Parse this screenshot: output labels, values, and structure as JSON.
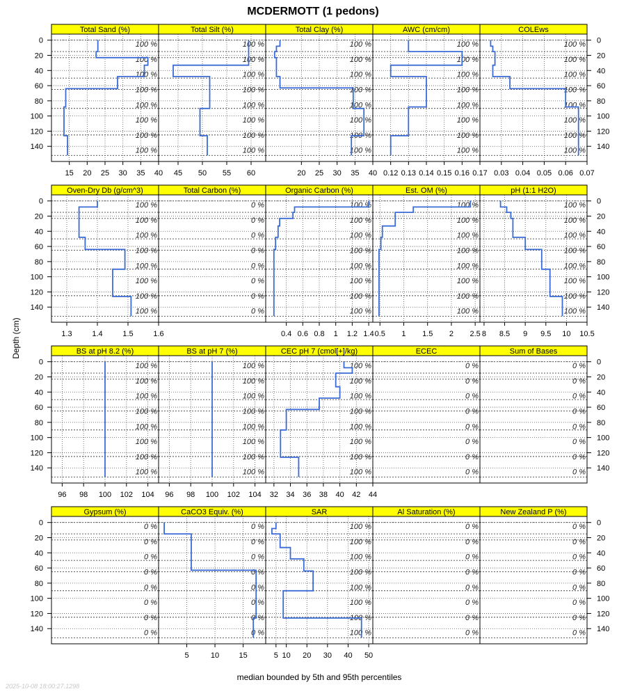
{
  "chart_data": {
    "type": "line",
    "title": "MCDERMOTT (1 pedons)",
    "ylabel": "Depth (cm)",
    "xlabel": "median bounded by 5th and 95th percentiles",
    "timestamp": "2025-10-08 18:00:27.1298",
    "ylim": [
      -8,
      160
    ],
    "y_reversed": true,
    "depth_ticks": [
      0,
      20,
      40,
      60,
      80,
      100,
      120,
      140
    ],
    "horizon_boundaries": [
      0,
      15,
      23,
      50,
      65,
      90,
      125,
      152
    ],
    "grid": true,
    "series_color": "#3a6bd6",
    "strip_color": "#ffff00",
    "pct_depths": [
      5,
      25,
      45,
      65,
      85,
      105,
      125,
      145
    ],
    "panels": [
      {
        "name": "Total Sand (%)",
        "xlim": [
          10,
          40
        ],
        "xticks": [
          15,
          20,
          25,
          30,
          35,
          40
        ],
        "pct_label": "100 %",
        "profile": [
          [
            0,
            15,
            23
          ],
          [
            15,
            23,
            22.5
          ],
          [
            23,
            33,
            37
          ],
          [
            33,
            48,
            36
          ],
          [
            48,
            64,
            28.5
          ],
          [
            64,
            88,
            14
          ],
          [
            88,
            126,
            13.5
          ],
          [
            126,
            152,
            14.5
          ]
        ]
      },
      {
        "name": "Total Silt (%)",
        "xlim": [
          41,
          63
        ],
        "xticks": [
          45,
          50,
          55,
          60
        ],
        "pct_label": "100 %",
        "profile": [
          [
            0,
            33,
            59.5
          ],
          [
            33,
            48,
            44
          ],
          [
            48,
            66,
            51.5
          ],
          [
            66,
            90,
            51.5
          ],
          [
            90,
            126,
            49.5
          ],
          [
            126,
            152,
            51
          ]
        ]
      },
      {
        "name": "Total Clay (%)",
        "xlim": [
          10,
          40
        ],
        "xticks": [
          20,
          25,
          30,
          35,
          40
        ],
        "pct_label": "100 %",
        "profile": [
          [
            0,
            8,
            14
          ],
          [
            8,
            15,
            13
          ],
          [
            15,
            23,
            12.5
          ],
          [
            23,
            48,
            13
          ],
          [
            48,
            63,
            14
          ],
          [
            63,
            90,
            34.5
          ],
          [
            90,
            126,
            37.5
          ],
          [
            126,
            152,
            34
          ]
        ]
      },
      {
        "name": "AWC (cm/cm)",
        "xlim": [
          0.11,
          0.17
        ],
        "xticks": [
          0.12,
          0.13,
          0.14,
          0.15,
          0.16,
          0.17
        ],
        "pct_label": "100 %",
        "profile": [
          [
            0,
            15,
            0.13
          ],
          [
            15,
            33,
            0.16
          ],
          [
            33,
            48,
            0.12
          ],
          [
            48,
            88,
            0.14
          ],
          [
            88,
            126,
            0.13
          ],
          [
            126,
            152,
            0.12
          ]
        ]
      },
      {
        "name": "COLEws",
        "xlim": [
          0.02,
          0.07
        ],
        "xticks": [
          0.03,
          0.04,
          0.05,
          0.06,
          0.07
        ],
        "pct_label": "100 %",
        "profile": [
          [
            0,
            8,
            0.025
          ],
          [
            8,
            15,
            0.026
          ],
          [
            15,
            33,
            0.027
          ],
          [
            33,
            48,
            0.026
          ],
          [
            48,
            64,
            0.034
          ],
          [
            64,
            88,
            0.06
          ],
          [
            88,
            152,
            0.066
          ]
        ]
      },
      {
        "name": "Oven-Dry Db (g/cm^3)",
        "xlim": [
          1.25,
          1.6
        ],
        "xticks": [
          1.3,
          1.4,
          1.5,
          1.6
        ],
        "pct_label": "100 %",
        "profile": [
          [
            0,
            8,
            1.4
          ],
          [
            8,
            48,
            1.34
          ],
          [
            48,
            64,
            1.36
          ],
          [
            64,
            90,
            1.49
          ],
          [
            90,
            126,
            1.45
          ],
          [
            126,
            152,
            1.51
          ]
        ]
      },
      {
        "name": "Total Carbon (%)",
        "xlim": [
          0,
          1
        ],
        "xticks": [],
        "pct_label": "0 %",
        "profile": []
      },
      {
        "name": "Organic Carbon (%)",
        "xlim": [
          0.15,
          1.45
        ],
        "xticks": [
          0.4,
          0.6,
          0.8,
          1.0,
          1.2,
          1.4
        ],
        "pct_label": "100 %",
        "profile": [
          [
            0,
            8,
            1.4
          ],
          [
            8,
            15,
            0.5
          ],
          [
            15,
            23,
            0.48
          ],
          [
            23,
            33,
            0.32
          ],
          [
            33,
            48,
            0.3
          ],
          [
            48,
            64,
            0.27
          ],
          [
            64,
            152,
            0.25
          ]
        ]
      },
      {
        "name": "Est. OM (%)",
        "xlim": [
          0.35,
          2.6
        ],
        "xticks": [
          0.5,
          1.0,
          1.5,
          2.0,
          2.5
        ],
        "pct_label": "100 %",
        "profile": [
          [
            0,
            8,
            2.4
          ],
          [
            8,
            15,
            1.2
          ],
          [
            15,
            33,
            0.82
          ],
          [
            33,
            48,
            0.55
          ],
          [
            48,
            64,
            0.52
          ],
          [
            64,
            152,
            0.48
          ]
        ]
      },
      {
        "name": "pH (1:1 H2O)",
        "xlim": [
          7.9,
          10.5
        ],
        "xticks": [
          8.0,
          8.5,
          9.0,
          9.5,
          10.0,
          10.5
        ],
        "pct_label": "100 %",
        "profile": [
          [
            0,
            8,
            8.4
          ],
          [
            8,
            15,
            8.55
          ],
          [
            15,
            23,
            8.65
          ],
          [
            23,
            48,
            8.7
          ],
          [
            48,
            64,
            9.0
          ],
          [
            64,
            90,
            9.4
          ],
          [
            90,
            126,
            9.6
          ],
          [
            126,
            152,
            9.9
          ]
        ]
      },
      {
        "name": "BS at pH 8.2 (%)",
        "xlim": [
          95,
          105
        ],
        "xticks": [
          96,
          98,
          100,
          102,
          104
        ],
        "pct_label": "100 %",
        "profile": [
          [
            0,
            152,
            100
          ]
        ]
      },
      {
        "name": "BS at pH 7 (%)",
        "xlim": [
          95,
          105
        ],
        "xticks": [
          96,
          98,
          100,
          102,
          104
        ],
        "pct_label": "100 %",
        "profile": [
          [
            0,
            152,
            100
          ]
        ]
      },
      {
        "name": "CEC pH 7 (cmol[+]/kg)",
        "xlim": [
          31,
          44
        ],
        "xticks": [
          32,
          34,
          36,
          38,
          40,
          42,
          44
        ],
        "pct_label": "100 %",
        "profile": [
          [
            0,
            8,
            40.5
          ],
          [
            8,
            15,
            41.5
          ],
          [
            15,
            33,
            39.5
          ],
          [
            33,
            48,
            40
          ],
          [
            48,
            63,
            37.5
          ],
          [
            63,
            90,
            33.5
          ],
          [
            90,
            126,
            32.8
          ],
          [
            126,
            152,
            35
          ]
        ]
      },
      {
        "name": "ECEC",
        "xlim": [
          0,
          1
        ],
        "xticks": [],
        "pct_label": "0 %",
        "profile": []
      },
      {
        "name": "Sum of Bases",
        "xlim": [
          0,
          1
        ],
        "xticks": [],
        "pct_label": "0 %",
        "profile": []
      },
      {
        "name": "Gypsum (%)",
        "xlim": [
          0,
          1
        ],
        "xticks": [],
        "pct_label": "0 %",
        "profile": []
      },
      {
        "name": "CaCO3 Equiv. (%)",
        "xlim": [
          0,
          19
        ],
        "xticks": [
          5,
          10,
          15
        ],
        "pct_label": "0 %",
        "profile": [
          [
            0,
            15,
            1
          ],
          [
            15,
            63,
            5.8
          ],
          [
            63,
            126,
            17.3
          ],
          [
            126,
            152,
            16.8
          ]
        ]
      },
      {
        "name": "SAR",
        "xlim": [
          0,
          52
        ],
        "xticks": [
          5,
          10,
          20,
          30,
          40,
          50
        ],
        "pct_label": "100 %",
        "profile": [
          [
            0,
            8,
            5
          ],
          [
            8,
            15,
            3
          ],
          [
            15,
            33,
            7
          ],
          [
            33,
            48,
            12
          ],
          [
            48,
            64,
            18.5
          ],
          [
            64,
            90,
            23
          ],
          [
            90,
            126,
            8.5
          ],
          [
            126,
            152,
            46.5
          ]
        ]
      },
      {
        "name": "Al Saturation (%)",
        "xlim": [
          0,
          1
        ],
        "xticks": [],
        "pct_label": "0 %",
        "profile": []
      },
      {
        "name": "New Zealand P (%)",
        "xlim": [
          0,
          1
        ],
        "xticks": [],
        "pct_label": "0 %",
        "profile": []
      }
    ]
  }
}
